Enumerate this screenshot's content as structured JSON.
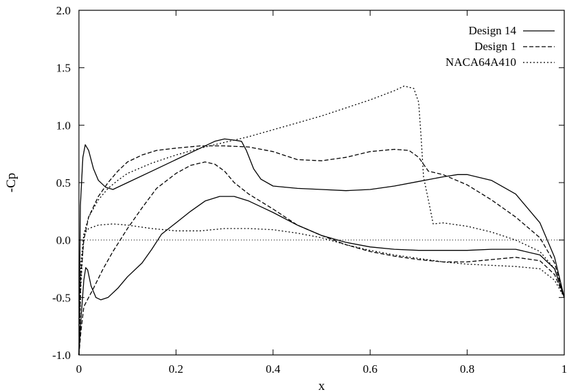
{
  "chart_data": {
    "type": "line",
    "xlabel": "x",
    "ylabel": "-Cp",
    "xlim": [
      0,
      1
    ],
    "ylim": [
      -1.0,
      2.0
    ],
    "x_ticks": [
      0,
      0.2,
      0.4,
      0.6,
      0.8,
      1
    ],
    "x_tick_labels": [
      "0",
      "0.2",
      "0.4",
      "0.6",
      "0.8",
      "1"
    ],
    "y_ticks": [
      -1.0,
      -0.5,
      0.0,
      0.5,
      1.0,
      1.5,
      2.0
    ],
    "y_tick_labels": [
      "-1.0",
      "-0.5",
      "0.0",
      "0.5",
      "1.0",
      "1.5",
      "2.0"
    ],
    "grid": false,
    "legend_position": "top-right",
    "reference_line": {
      "y": 0.0,
      "style": "dotted"
    },
    "series": [
      {
        "name": "Design 14",
        "style": "solid",
        "upper": [
          [
            0.0,
            -1.0
          ],
          [
            0.003,
            0.3
          ],
          [
            0.008,
            0.72
          ],
          [
            0.013,
            0.83
          ],
          [
            0.02,
            0.78
          ],
          [
            0.03,
            0.62
          ],
          [
            0.04,
            0.52
          ],
          [
            0.055,
            0.46
          ],
          [
            0.07,
            0.44
          ],
          [
            0.1,
            0.5
          ],
          [
            0.15,
            0.6
          ],
          [
            0.2,
            0.7
          ],
          [
            0.25,
            0.8
          ],
          [
            0.28,
            0.86
          ],
          [
            0.3,
            0.88
          ],
          [
            0.32,
            0.87
          ],
          [
            0.335,
            0.86
          ],
          [
            0.345,
            0.78
          ],
          [
            0.36,
            0.62
          ],
          [
            0.375,
            0.53
          ],
          [
            0.4,
            0.47
          ],
          [
            0.45,
            0.45
          ],
          [
            0.5,
            0.44
          ],
          [
            0.55,
            0.43
          ],
          [
            0.6,
            0.44
          ],
          [
            0.65,
            0.47
          ],
          [
            0.7,
            0.51
          ],
          [
            0.75,
            0.55
          ],
          [
            0.78,
            0.57
          ],
          [
            0.8,
            0.57
          ],
          [
            0.85,
            0.52
          ],
          [
            0.9,
            0.4
          ],
          [
            0.95,
            0.15
          ],
          [
            0.98,
            -0.15
          ],
          [
            1.0,
            -0.5
          ]
        ],
        "lower": [
          [
            0.0,
            -1.0
          ],
          [
            0.004,
            -0.7
          ],
          [
            0.01,
            -0.35
          ],
          [
            0.014,
            -0.24
          ],
          [
            0.018,
            -0.26
          ],
          [
            0.025,
            -0.4
          ],
          [
            0.035,
            -0.5
          ],
          [
            0.045,
            -0.52
          ],
          [
            0.06,
            -0.5
          ],
          [
            0.08,
            -0.42
          ],
          [
            0.1,
            -0.32
          ],
          [
            0.13,
            -0.2
          ],
          [
            0.15,
            -0.08
          ],
          [
            0.17,
            0.05
          ],
          [
            0.2,
            0.15
          ],
          [
            0.23,
            0.25
          ],
          [
            0.26,
            0.34
          ],
          [
            0.29,
            0.38
          ],
          [
            0.32,
            0.38
          ],
          [
            0.35,
            0.34
          ],
          [
            0.4,
            0.24
          ],
          [
            0.45,
            0.13
          ],
          [
            0.5,
            0.04
          ],
          [
            0.55,
            -0.02
          ],
          [
            0.6,
            -0.06
          ],
          [
            0.65,
            -0.08
          ],
          [
            0.7,
            -0.09
          ],
          [
            0.75,
            -0.09
          ],
          [
            0.8,
            -0.09
          ],
          [
            0.85,
            -0.08
          ],
          [
            0.9,
            -0.08
          ],
          [
            0.95,
            -0.13
          ],
          [
            0.98,
            -0.25
          ],
          [
            1.0,
            -0.5
          ]
        ]
      },
      {
        "name": "Design 1",
        "style": "dashed",
        "upper": [
          [
            0.0,
            -1.0
          ],
          [
            0.004,
            -0.3
          ],
          [
            0.01,
            0.0
          ],
          [
            0.02,
            0.2
          ],
          [
            0.04,
            0.38
          ],
          [
            0.06,
            0.5
          ],
          [
            0.08,
            0.6
          ],
          [
            0.1,
            0.68
          ],
          [
            0.13,
            0.74
          ],
          [
            0.16,
            0.78
          ],
          [
            0.2,
            0.8
          ],
          [
            0.25,
            0.82
          ],
          [
            0.3,
            0.82
          ],
          [
            0.35,
            0.81
          ],
          [
            0.4,
            0.77
          ],
          [
            0.45,
            0.7
          ],
          [
            0.5,
            0.69
          ],
          [
            0.55,
            0.72
          ],
          [
            0.6,
            0.77
          ],
          [
            0.65,
            0.79
          ],
          [
            0.68,
            0.78
          ],
          [
            0.7,
            0.72
          ],
          [
            0.72,
            0.6
          ],
          [
            0.75,
            0.57
          ],
          [
            0.8,
            0.48
          ],
          [
            0.85,
            0.35
          ],
          [
            0.9,
            0.2
          ],
          [
            0.95,
            0.02
          ],
          [
            0.98,
            -0.2
          ],
          [
            1.0,
            -0.5
          ]
        ],
        "lower": [
          [
            0.0,
            -1.0
          ],
          [
            0.004,
            -0.8
          ],
          [
            0.01,
            -0.58
          ],
          [
            0.02,
            -0.5
          ],
          [
            0.03,
            -0.42
          ],
          [
            0.05,
            -0.25
          ],
          [
            0.07,
            -0.1
          ],
          [
            0.1,
            0.1
          ],
          [
            0.13,
            0.28
          ],
          [
            0.16,
            0.45
          ],
          [
            0.2,
            0.58
          ],
          [
            0.23,
            0.65
          ],
          [
            0.26,
            0.68
          ],
          [
            0.28,
            0.66
          ],
          [
            0.3,
            0.6
          ],
          [
            0.32,
            0.5
          ],
          [
            0.35,
            0.4
          ],
          [
            0.4,
            0.27
          ],
          [
            0.45,
            0.13
          ],
          [
            0.5,
            0.04
          ],
          [
            0.55,
            -0.04
          ],
          [
            0.6,
            -0.1
          ],
          [
            0.65,
            -0.14
          ],
          [
            0.7,
            -0.17
          ],
          [
            0.75,
            -0.19
          ],
          [
            0.8,
            -0.19
          ],
          [
            0.85,
            -0.17
          ],
          [
            0.9,
            -0.15
          ],
          [
            0.95,
            -0.18
          ],
          [
            0.98,
            -0.3
          ],
          [
            1.0,
            -0.5
          ]
        ]
      },
      {
        "name": "NACA64A410",
        "style": "dotted",
        "upper": [
          [
            0.0,
            -1.0
          ],
          [
            0.004,
            -0.2
          ],
          [
            0.01,
            0.05
          ],
          [
            0.02,
            0.2
          ],
          [
            0.04,
            0.35
          ],
          [
            0.06,
            0.45
          ],
          [
            0.08,
            0.52
          ],
          [
            0.1,
            0.58
          ],
          [
            0.15,
            0.67
          ],
          [
            0.2,
            0.74
          ],
          [
            0.25,
            0.8
          ],
          [
            0.3,
            0.85
          ],
          [
            0.35,
            0.9
          ],
          [
            0.4,
            0.96
          ],
          [
            0.45,
            1.02
          ],
          [
            0.5,
            1.08
          ],
          [
            0.55,
            1.15
          ],
          [
            0.6,
            1.22
          ],
          [
            0.65,
            1.3
          ],
          [
            0.67,
            1.34
          ],
          [
            0.69,
            1.32
          ],
          [
            0.7,
            1.2
          ],
          [
            0.705,
            0.9
          ],
          [
            0.71,
            0.55
          ],
          [
            0.72,
            0.35
          ],
          [
            0.73,
            0.14
          ],
          [
            0.75,
            0.15
          ],
          [
            0.8,
            0.12
          ],
          [
            0.85,
            0.07
          ],
          [
            0.9,
            0.0
          ],
          [
            0.95,
            -0.1
          ],
          [
            0.98,
            -0.25
          ],
          [
            1.0,
            -0.5
          ]
        ],
        "lower": [
          [
            0.0,
            -1.0
          ],
          [
            0.004,
            -0.4
          ],
          [
            0.01,
            0.05
          ],
          [
            0.02,
            0.1
          ],
          [
            0.04,
            0.13
          ],
          [
            0.07,
            0.14
          ],
          [
            0.1,
            0.13
          ],
          [
            0.15,
            0.1
          ],
          [
            0.2,
            0.08
          ],
          [
            0.25,
            0.08
          ],
          [
            0.3,
            0.1
          ],
          [
            0.35,
            0.1
          ],
          [
            0.4,
            0.09
          ],
          [
            0.45,
            0.06
          ],
          [
            0.5,
            0.02
          ],
          [
            0.55,
            -0.04
          ],
          [
            0.6,
            -0.09
          ],
          [
            0.65,
            -0.13
          ],
          [
            0.7,
            -0.16
          ],
          [
            0.75,
            -0.19
          ],
          [
            0.8,
            -0.21
          ],
          [
            0.85,
            -0.22
          ],
          [
            0.9,
            -0.23
          ],
          [
            0.95,
            -0.25
          ],
          [
            0.98,
            -0.35
          ],
          [
            1.0,
            -0.5
          ]
        ]
      }
    ]
  }
}
